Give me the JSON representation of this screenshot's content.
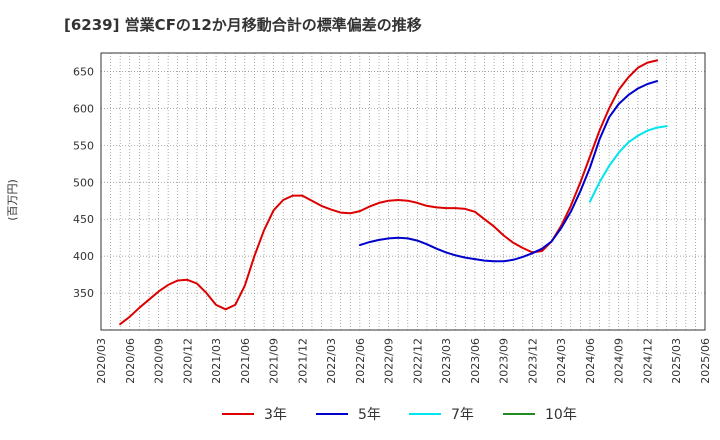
{
  "chart_data": {
    "type": "line",
    "title": "[6239]  営業CFの12か月移動合計の標準偏差の推移",
    "ylabel": "(百万円)",
    "xlabel": "",
    "ylim": [
      300,
      675
    ],
    "yticks": [
      350,
      400,
      450,
      500,
      550,
      600,
      650
    ],
    "xticks": [
      "2020/03",
      "2020/06",
      "2020/09",
      "2020/12",
      "2021/03",
      "2021/06",
      "2021/09",
      "2021/12",
      "2022/03",
      "2022/06",
      "2022/09",
      "2022/12",
      "2023/03",
      "2023/06",
      "2023/09",
      "2023/12",
      "2024/03",
      "2024/06",
      "2024/09",
      "2024/12",
      "2025/03",
      "2025/06"
    ],
    "grid": true,
    "legend_position": "bottom",
    "series": [
      {
        "name": "3年",
        "color": "#dd0000",
        "points": [
          [
            "2020/05",
            308
          ],
          [
            "2020/06",
            318
          ],
          [
            "2020/07",
            330
          ],
          [
            "2020/08",
            341
          ],
          [
            "2020/09",
            352
          ],
          [
            "2020/10",
            361
          ],
          [
            "2020/11",
            367
          ],
          [
            "2020/12",
            368
          ],
          [
            "2021/01",
            363
          ],
          [
            "2021/02",
            350
          ],
          [
            "2021/03",
            334
          ],
          [
            "2021/04",
            328
          ],
          [
            "2021/05",
            334
          ],
          [
            "2021/06",
            360
          ],
          [
            "2021/07",
            400
          ],
          [
            "2021/08",
            435
          ],
          [
            "2021/09",
            462
          ],
          [
            "2021/10",
            476
          ],
          [
            "2021/11",
            482
          ],
          [
            "2021/12",
            482
          ],
          [
            "2022/01",
            475
          ],
          [
            "2022/02",
            468
          ],
          [
            "2022/03",
            463
          ],
          [
            "2022/04",
            459
          ],
          [
            "2022/05",
            458
          ],
          [
            "2022/06",
            461
          ],
          [
            "2022/07",
            467
          ],
          [
            "2022/08",
            472
          ],
          [
            "2022/09",
            475
          ],
          [
            "2022/10",
            476
          ],
          [
            "2022/11",
            475
          ],
          [
            "2022/12",
            472
          ],
          [
            "2023/01",
            468
          ],
          [
            "2023/02",
            466
          ],
          [
            "2023/03",
            465
          ],
          [
            "2023/04",
            465
          ],
          [
            "2023/05",
            464
          ],
          [
            "2023/06",
            460
          ],
          [
            "2023/07",
            450
          ],
          [
            "2023/08",
            440
          ],
          [
            "2023/09",
            428
          ],
          [
            "2023/10",
            418
          ],
          [
            "2023/11",
            411
          ],
          [
            "2023/12",
            405
          ],
          [
            "2024/01",
            407
          ],
          [
            "2024/02",
            420
          ],
          [
            "2024/03",
            441
          ],
          [
            "2024/04",
            468
          ],
          [
            "2024/05",
            500
          ],
          [
            "2024/06",
            535
          ],
          [
            "2024/07",
            570
          ],
          [
            "2024/08",
            600
          ],
          [
            "2024/09",
            625
          ],
          [
            "2024/10",
            642
          ],
          [
            "2024/11",
            655
          ],
          [
            "2024/12",
            662
          ],
          [
            "2025/01",
            665
          ]
        ]
      },
      {
        "name": "5年",
        "color": "#0000cc",
        "points": [
          [
            "2022/06",
            415
          ],
          [
            "2022/07",
            419
          ],
          [
            "2022/08",
            422
          ],
          [
            "2022/09",
            424
          ],
          [
            "2022/10",
            425
          ],
          [
            "2022/11",
            424
          ],
          [
            "2022/12",
            421
          ],
          [
            "2023/01",
            416
          ],
          [
            "2023/02",
            410
          ],
          [
            "2023/03",
            405
          ],
          [
            "2023/04",
            401
          ],
          [
            "2023/05",
            398
          ],
          [
            "2023/06",
            396
          ],
          [
            "2023/07",
            394
          ],
          [
            "2023/08",
            393
          ],
          [
            "2023/09",
            393
          ],
          [
            "2023/10",
            395
          ],
          [
            "2023/11",
            399
          ],
          [
            "2023/12",
            404
          ],
          [
            "2024/01",
            410
          ],
          [
            "2024/02",
            420
          ],
          [
            "2024/03",
            438
          ],
          [
            "2024/04",
            460
          ],
          [
            "2024/05",
            488
          ],
          [
            "2024/06",
            520
          ],
          [
            "2024/07",
            558
          ],
          [
            "2024/08",
            588
          ],
          [
            "2024/09",
            606
          ],
          [
            "2024/10",
            618
          ],
          [
            "2024/11",
            627
          ],
          [
            "2024/12",
            633
          ],
          [
            "2025/01",
            637
          ]
        ]
      },
      {
        "name": "7年",
        "color": "#00e5ee",
        "points": [
          [
            "2024/06",
            474
          ],
          [
            "2024/07",
            500
          ],
          [
            "2024/08",
            522
          ],
          [
            "2024/09",
            540
          ],
          [
            "2024/10",
            554
          ],
          [
            "2024/11",
            563
          ],
          [
            "2024/12",
            570
          ],
          [
            "2025/01",
            574
          ],
          [
            "2025/02",
            576
          ]
        ]
      },
      {
        "name": "10年",
        "color": "#228b22",
        "points": []
      }
    ]
  }
}
